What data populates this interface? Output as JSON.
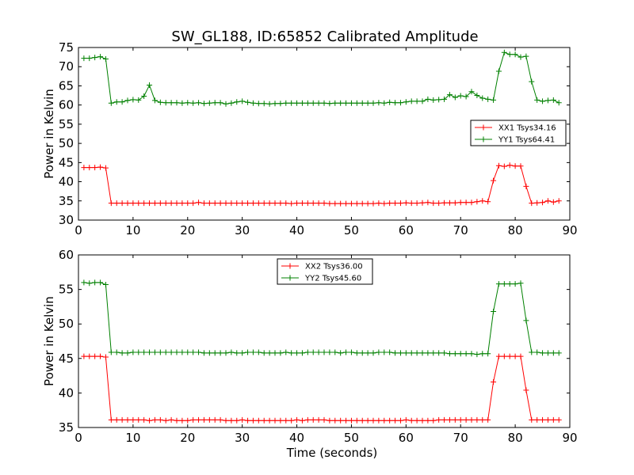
{
  "title": "SW_GL188, ID:65852 Calibrated Amplitude",
  "chart_data": [
    {
      "type": "line",
      "xlabel": "",
      "ylabel": "Power in Kelvin",
      "xlim": [
        0,
        90
      ],
      "ylim": [
        30,
        75
      ],
      "xticks": [
        0,
        10,
        20,
        30,
        40,
        50,
        60,
        70,
        80,
        90
      ],
      "yticks": [
        30,
        35,
        40,
        45,
        50,
        55,
        60,
        65,
        70,
        75
      ],
      "legend_position": "center-right",
      "series": [
        {
          "name": "XX1 Tsys34.16",
          "color": "#ff0000",
          "x": [
            1,
            2,
            3,
            4,
            5,
            6,
            7,
            8,
            9,
            10,
            11,
            12,
            13,
            14,
            15,
            16,
            17,
            18,
            19,
            20,
            21,
            22,
            23,
            24,
            25,
            26,
            27,
            28,
            29,
            30,
            31,
            32,
            33,
            34,
            35,
            36,
            37,
            38,
            39,
            40,
            41,
            42,
            43,
            44,
            45,
            46,
            47,
            48,
            49,
            50,
            51,
            52,
            53,
            54,
            55,
            56,
            57,
            58,
            59,
            60,
            61,
            62,
            63,
            64,
            65,
            66,
            67,
            68,
            69,
            70,
            71,
            72,
            73,
            74,
            75,
            76,
            77,
            78,
            79,
            80,
            81,
            82,
            83,
            84,
            85,
            86,
            87,
            88
          ],
          "y": [
            43.7,
            43.7,
            43.7,
            43.8,
            43.6,
            34.4,
            34.4,
            34.4,
            34.4,
            34.4,
            34.4,
            34.4,
            34.4,
            34.4,
            34.4,
            34.4,
            34.4,
            34.4,
            34.4,
            34.4,
            34.4,
            34.6,
            34.4,
            34.4,
            34.4,
            34.4,
            34.4,
            34.4,
            34.4,
            34.4,
            34.4,
            34.4,
            34.4,
            34.4,
            34.4,
            34.4,
            34.4,
            34.4,
            34.3,
            34.4,
            34.4,
            34.4,
            34.4,
            34.4,
            34.4,
            34.3,
            34.3,
            34.3,
            34.3,
            34.3,
            34.3,
            34.3,
            34.3,
            34.3,
            34.4,
            34.3,
            34.4,
            34.4,
            34.4,
            34.5,
            34.4,
            34.4,
            34.5,
            34.6,
            34.4,
            34.4,
            34.5,
            34.5,
            34.5,
            34.6,
            34.6,
            34.6,
            34.8,
            35.0,
            34.8,
            40.3,
            44.2,
            44.0,
            44.3,
            44.1,
            44.1,
            38.8,
            34.4,
            34.5,
            34.6,
            35.0,
            34.7,
            35.0
          ]
        },
        {
          "name": "YY1 Tsys64.41",
          "color": "#008000",
          "x": [
            1,
            2,
            3,
            4,
            5,
            6,
            7,
            8,
            9,
            10,
            11,
            12,
            13,
            14,
            15,
            16,
            17,
            18,
            19,
            20,
            21,
            22,
            23,
            24,
            25,
            26,
            27,
            28,
            29,
            30,
            31,
            32,
            33,
            34,
            35,
            36,
            37,
            38,
            39,
            40,
            41,
            42,
            43,
            44,
            45,
            46,
            47,
            48,
            49,
            50,
            51,
            52,
            53,
            54,
            55,
            56,
            57,
            58,
            59,
            60,
            61,
            62,
            63,
            64,
            65,
            66,
            67,
            68,
            69,
            70,
            71,
            72,
            73,
            74,
            75,
            76,
            77,
            78,
            79,
            80,
            81,
            82,
            83,
            84,
            85,
            86,
            87,
            88
          ],
          "y": [
            72.2,
            72.2,
            72.4,
            72.6,
            72.0,
            60.5,
            60.8,
            60.8,
            61.2,
            61.4,
            61.3,
            62.3,
            65.2,
            61.2,
            60.7,
            60.6,
            60.6,
            60.6,
            60.5,
            60.6,
            60.5,
            60.6,
            60.4,
            60.5,
            60.6,
            60.6,
            60.3,
            60.5,
            60.8,
            61.0,
            60.7,
            60.5,
            60.4,
            60.4,
            60.3,
            60.4,
            60.4,
            60.5,
            60.5,
            60.5,
            60.5,
            60.5,
            60.5,
            60.5,
            60.5,
            60.4,
            60.5,
            60.5,
            60.5,
            60.5,
            60.5,
            60.5,
            60.5,
            60.5,
            60.6,
            60.5,
            60.7,
            60.6,
            60.6,
            60.8,
            61.0,
            61.0,
            61.0,
            61.5,
            61.3,
            61.4,
            61.5,
            62.7,
            62.0,
            62.4,
            62.2,
            63.5,
            62.5,
            61.8,
            61.5,
            61.3,
            68.8,
            73.7,
            73.2,
            73.2,
            72.5,
            72.7,
            66.1,
            61.3,
            61.0,
            61.2,
            61.3,
            60.6
          ]
        }
      ]
    },
    {
      "type": "line",
      "xlabel": "Time (seconds)",
      "ylabel": "Power in Kelvin",
      "xlim": [
        0,
        90
      ],
      "ylim": [
        35,
        60
      ],
      "xticks": [
        0,
        10,
        20,
        30,
        40,
        50,
        60,
        70,
        80,
        90
      ],
      "yticks": [
        35,
        40,
        45,
        50,
        55,
        60
      ],
      "legend_position": "upper-center",
      "series": [
        {
          "name": "XX2 Tsys36.00",
          "color": "#ff0000",
          "x": [
            1,
            2,
            3,
            4,
            5,
            6,
            7,
            8,
            9,
            10,
            11,
            12,
            13,
            14,
            15,
            16,
            17,
            18,
            19,
            20,
            21,
            22,
            23,
            24,
            25,
            26,
            27,
            28,
            29,
            30,
            31,
            32,
            33,
            34,
            35,
            36,
            37,
            38,
            39,
            40,
            41,
            42,
            43,
            44,
            45,
            46,
            47,
            48,
            49,
            50,
            51,
            52,
            53,
            54,
            55,
            56,
            57,
            58,
            59,
            60,
            61,
            62,
            63,
            64,
            65,
            66,
            67,
            68,
            69,
            70,
            71,
            72,
            73,
            74,
            75,
            76,
            77,
            78,
            79,
            80,
            81,
            82,
            83,
            84,
            85,
            86,
            87,
            88
          ],
          "y": [
            45.3,
            45.3,
            45.3,
            45.3,
            45.2,
            36.1,
            36.1,
            36.1,
            36.1,
            36.1,
            36.1,
            36.1,
            36.0,
            36.1,
            36.1,
            36.0,
            36.1,
            36.0,
            36.0,
            36.0,
            36.1,
            36.1,
            36.1,
            36.1,
            36.1,
            36.1,
            36.0,
            36.0,
            36.0,
            36.1,
            36.0,
            36.0,
            36.0,
            36.0,
            36.0,
            36.0,
            36.0,
            36.0,
            36.0,
            36.1,
            36.0,
            36.1,
            36.1,
            36.1,
            36.1,
            36.0,
            36.0,
            36.0,
            36.0,
            36.0,
            36.0,
            36.0,
            36.0,
            36.0,
            36.0,
            36.0,
            36.0,
            36.0,
            36.0,
            36.1,
            36.0,
            36.0,
            36.0,
            36.0,
            36.0,
            36.1,
            36.1,
            36.1,
            36.1,
            36.1,
            36.1,
            36.1,
            36.1,
            36.1,
            36.1,
            41.6,
            45.3,
            45.3,
            45.3,
            45.3,
            45.3,
            40.4,
            36.1,
            36.1,
            36.1,
            36.1,
            36.1,
            36.1
          ]
        },
        {
          "name": "YY2 Tsys45.60",
          "color": "#008000",
          "x": [
            1,
            2,
            3,
            4,
            5,
            6,
            7,
            8,
            9,
            10,
            11,
            12,
            13,
            14,
            15,
            16,
            17,
            18,
            19,
            20,
            21,
            22,
            23,
            24,
            25,
            26,
            27,
            28,
            29,
            30,
            31,
            32,
            33,
            34,
            35,
            36,
            37,
            38,
            39,
            40,
            41,
            42,
            43,
            44,
            45,
            46,
            47,
            48,
            49,
            50,
            51,
            52,
            53,
            54,
            55,
            56,
            57,
            58,
            59,
            60,
            61,
            62,
            63,
            64,
            65,
            66,
            67,
            68,
            69,
            70,
            71,
            72,
            73,
            74,
            75,
            76,
            77,
            78,
            79,
            80,
            81,
            82,
            83,
            84,
            85,
            86,
            87,
            88
          ],
          "y": [
            56.0,
            55.9,
            56.0,
            56.0,
            55.7,
            45.9,
            45.9,
            45.8,
            45.8,
            45.9,
            45.9,
            45.9,
            45.9,
            45.9,
            45.9,
            45.9,
            45.9,
            45.9,
            45.9,
            45.9,
            45.9,
            45.9,
            45.8,
            45.8,
            45.8,
            45.8,
            45.8,
            45.9,
            45.8,
            45.8,
            45.9,
            45.9,
            45.9,
            45.8,
            45.8,
            45.8,
            45.8,
            45.9,
            45.8,
            45.8,
            45.8,
            45.9,
            45.9,
            45.9,
            45.9,
            45.9,
            45.9,
            45.8,
            45.9,
            45.9,
            45.8,
            45.8,
            45.8,
            45.8,
            45.9,
            45.9,
            45.9,
            45.8,
            45.8,
            45.8,
            45.8,
            45.8,
            45.8,
            45.8,
            45.8,
            45.8,
            45.8,
            45.7,
            45.7,
            45.7,
            45.7,
            45.7,
            45.6,
            45.7,
            45.7,
            51.8,
            55.8,
            55.8,
            55.8,
            55.8,
            55.9,
            50.5,
            45.9,
            45.9,
            45.8,
            45.8,
            45.8,
            45.8
          ]
        }
      ]
    }
  ]
}
